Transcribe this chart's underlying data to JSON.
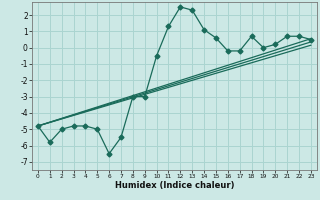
{
  "xlabel": "Humidex (Indice chaleur)",
  "ylabel": "",
  "background_color": "#cce8e5",
  "grid_color": "#aad4d0",
  "line_color": "#1a6b5a",
  "xlim": [
    -0.5,
    23.5
  ],
  "ylim": [
    -7.5,
    2.8
  ],
  "yticks": [
    2,
    1,
    0,
    -1,
    -2,
    -3,
    -4,
    -5,
    -6,
    -7
  ],
  "xticks": [
    0,
    1,
    2,
    3,
    4,
    5,
    6,
    7,
    8,
    9,
    10,
    11,
    12,
    13,
    14,
    15,
    16,
    17,
    18,
    19,
    20,
    21,
    22,
    23
  ],
  "line1_x": [
    0,
    1,
    2,
    3,
    4,
    5,
    6,
    7,
    8,
    9,
    10,
    11,
    12,
    13,
    14,
    15,
    16,
    17,
    18,
    19,
    20,
    21,
    22,
    23
  ],
  "line1_y": [
    -4.8,
    -5.8,
    -5.0,
    -4.8,
    -4.8,
    -5.0,
    -6.5,
    -5.5,
    -3.0,
    -3.0,
    -0.5,
    1.3,
    2.5,
    2.3,
    1.1,
    0.6,
    -0.2,
    -0.2,
    0.7,
    0.0,
    0.2,
    0.7,
    0.7,
    0.5
  ],
  "line2_x": [
    0,
    23
  ],
  "line2_y": [
    -4.8,
    0.55
  ],
  "line3_x": [
    0,
    23
  ],
  "line3_y": [
    -4.8,
    0.35
  ],
  "line4_x": [
    0,
    23
  ],
  "line4_y": [
    -4.8,
    0.15
  ],
  "xlabel_fontsize": 6.0,
  "ytick_fontsize": 5.5,
  "xtick_fontsize": 4.2
}
